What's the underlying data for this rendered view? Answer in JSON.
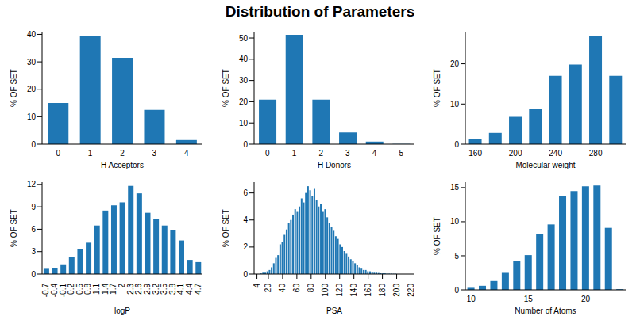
{
  "title": "Distribution of Parameters",
  "chart_data": [
    {
      "type": "bar",
      "x_label": "H Acceptors",
      "y_label": "% OF SET",
      "categories": [
        "0",
        "1",
        "2",
        "3",
        "4"
      ],
      "values": [
        15,
        39.5,
        31.5,
        12.5,
        1.5
      ],
      "color": "#1f77b4",
      "ylim": [
        0,
        41
      ],
      "yticks": [
        0,
        10,
        20,
        30,
        40
      ]
    },
    {
      "type": "bar",
      "x_label": "H Donors",
      "y_label": "% OF SET",
      "categories": [
        "0",
        "1",
        "2",
        "3",
        "4",
        "5"
      ],
      "values": [
        21,
        51.5,
        21,
        5.5,
        1.2,
        0.1
      ],
      "color": "#1f77b4",
      "ylim": [
        0,
        53
      ],
      "yticks": [
        0,
        10,
        20,
        30,
        40,
        50
      ]
    },
    {
      "type": "bar",
      "x_label": "Molecular weight",
      "y_label": "% OF SET",
      "categories": [
        "160",
        null,
        "200",
        null,
        "240",
        null,
        "280",
        null
      ],
      "values": [
        1.2,
        2.8,
        6.8,
        8.8,
        17,
        19.8,
        27,
        17
      ],
      "color": "#1f77b4",
      "ylim": [
        0,
        28
      ],
      "yticks": [
        0,
        10,
        20
      ]
    },
    {
      "type": "bar",
      "x_label": "logP",
      "y_label": "% OF SET",
      "categories": [
        "-0.7",
        "-0.4",
        "-0.1",
        "0.2",
        "0.5",
        "0.8",
        "1.1",
        "1.4",
        "1.7",
        "2",
        "2.3",
        "2.6",
        "2.9",
        "3.2",
        "3.5",
        "3.8",
        "4.1",
        "4.4",
        "4.7"
      ],
      "values": [
        0.7,
        0.8,
        1.3,
        2.3,
        3.3,
        4.2,
        6.5,
        8.5,
        9.2,
        9.6,
        11.8,
        10.8,
        8.2,
        7.4,
        6.5,
        5.9,
        4.5,
        1.9,
        1.6
      ],
      "color": "#1f77b4",
      "ylim": [
        0,
        12.3
      ],
      "yticks": [
        0,
        3,
        6,
        9,
        12
      ]
    },
    {
      "type": "bar",
      "x_label": "PSA",
      "y_label": "% OF SET",
      "x": [
        10,
        13,
        16,
        19,
        22,
        25,
        28,
        31,
        34,
        37,
        40,
        43,
        46,
        49,
        52,
        55,
        58,
        61,
        64,
        67,
        70,
        73,
        76,
        79,
        82,
        85,
        88,
        91,
        94,
        97,
        100,
        103,
        106,
        109,
        112,
        115,
        118,
        121,
        124,
        127,
        130,
        133,
        136,
        139,
        142,
        145,
        148,
        151,
        154,
        157,
        160,
        163,
        166,
        169,
        172,
        175,
        178,
        181,
        184,
        187,
        190,
        193,
        196,
        199
      ],
      "values": [
        0.05,
        0.1,
        0.1,
        0.2,
        0.3,
        0.5,
        0.8,
        1.2,
        1.4,
        2.2,
        2.4,
        2.9,
        3.3,
        3.8,
        4.0,
        4.4,
        4.8,
        4.6,
        5.0,
        5.6,
        5.3,
        6.0,
        6.5,
        6.2,
        5.8,
        6.3,
        5.5,
        5.0,
        5.2,
        4.6,
        4.8,
        4.2,
        3.8,
        3.5,
        3.2,
        2.8,
        2.6,
        2.2,
        2.0,
        1.7,
        1.5,
        1.3,
        1.1,
        1.0,
        0.8,
        0.7,
        0.5,
        0.4,
        0.3,
        0.3,
        0.2,
        0.2,
        0.15,
        0.1,
        0.1,
        0.08,
        0.06,
        0.05,
        0.05,
        0.04,
        0.03,
        0.03,
        0.02,
        0.02
      ],
      "color": "#1f77b4",
      "xlim": [
        0,
        225
      ],
      "xticks": [
        4,
        20,
        40,
        60,
        80,
        100,
        120,
        140,
        160,
        180,
        200,
        220
      ],
      "ylim": [
        0,
        6.8
      ],
      "yticks": [
        0,
        2,
        4,
        6
      ]
    },
    {
      "type": "bar",
      "x_label": "Number of Atoms",
      "y_label": "% OF SET",
      "categories": [
        "10",
        null,
        null,
        null,
        null,
        "15",
        null,
        null,
        null,
        null,
        "20",
        null,
        null,
        null
      ],
      "values": [
        0.3,
        0.6,
        1.3,
        2.5,
        4.2,
        5.1,
        8.2,
        9.6,
        13.8,
        14.5,
        15.2,
        15.3,
        9.1,
        0.1
      ],
      "color": "#1f77b4",
      "ylim": [
        0,
        15.8
      ],
      "yticks": [
        0,
        5,
        10,
        15
      ]
    }
  ]
}
